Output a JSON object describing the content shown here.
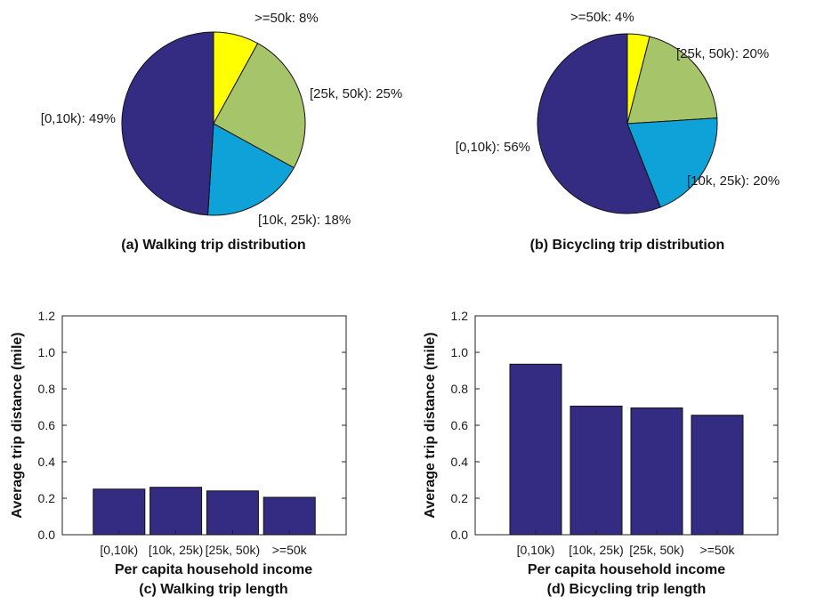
{
  "chart_data": [
    {
      "type": "pie",
      "caption": "(a) Walking trip distribution",
      "slices": [
        {
          "label": ">=50k",
          "percent": 8,
          "color": "#ffff00",
          "display": ">=50k: 8%"
        },
        {
          "label": "[25k, 50k)",
          "percent": 25,
          "color": "#a6c46a",
          "display": "[25k, 50k): 25%"
        },
        {
          "label": "[10k, 25k)",
          "percent": 18,
          "color": "#0fa2d8",
          "display": "[10k, 25k): 18%"
        },
        {
          "label": "[0,10k)",
          "percent": 49,
          "color": "#342b82",
          "display": "[0,10k): 49%"
        }
      ]
    },
    {
      "type": "pie",
      "caption": "(b) Bicycling trip distribution",
      "slices": [
        {
          "label": ">=50k",
          "percent": 4,
          "color": "#ffff00",
          "display": ">=50k: 4%"
        },
        {
          "label": "[25k, 50k)",
          "percent": 20,
          "color": "#a6c46a",
          "display": "[25k, 50k): 20%"
        },
        {
          "label": "[10k, 25k)",
          "percent": 20,
          "color": "#0fa2d8",
          "display": "[10k, 25k): 20%"
        },
        {
          "label": "[0,10k)",
          "percent": 56,
          "color": "#342b82",
          "display": "[0,10k): 56%"
        }
      ]
    },
    {
      "type": "bar",
      "caption": "(c) Walking trip length",
      "categories": [
        "[0,10k)",
        "[10k, 25k)",
        "[25k, 50k)",
        ">=50k"
      ],
      "values": [
        0.25,
        0.26,
        0.24,
        0.205
      ],
      "xlabel": "Per capita household income",
      "ylabel": "Average trip distance (mile)",
      "ylim": [
        0,
        1.2
      ],
      "yticks": [
        "0.0",
        "0.2",
        "0.4",
        "0.6",
        "0.8",
        "1.0",
        "1.2"
      ],
      "bar_color": "#342b82",
      "grid": false
    },
    {
      "type": "bar",
      "caption": "(d) Bicycling trip length",
      "categories": [
        "[0,10k)",
        "[10k, 25k)",
        "[25k, 50k)",
        ">=50k"
      ],
      "values": [
        0.935,
        0.705,
        0.695,
        0.655
      ],
      "xlabel": "Per capita household income",
      "ylabel": "Average trip distance (mile)",
      "ylim": [
        0,
        1.2
      ],
      "yticks": [
        "0.0",
        "0.2",
        "0.4",
        "0.6",
        "0.8",
        "1.0",
        "1.2"
      ],
      "bar_color": "#342b82",
      "grid": false
    }
  ]
}
